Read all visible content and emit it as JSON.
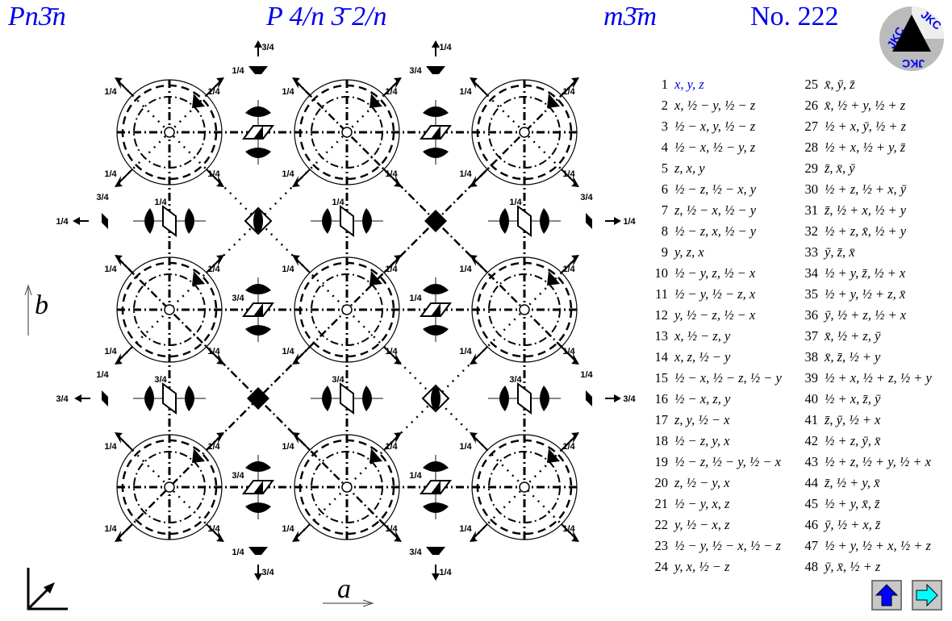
{
  "header": {
    "short_symbol": "Pn3̄n",
    "full_symbol": "P 4/n 3̄ 2/n",
    "point_group": "m3̄m",
    "number": "No. 222"
  },
  "logo": {
    "text": "JKC"
  },
  "axes": {
    "a": "a",
    "b": "b"
  },
  "diagram": {
    "quarter": "1/4",
    "three_quarter": "3/4"
  },
  "positions": [
    {
      "n": "1",
      "expr": "x, y, z",
      "highlight": true
    },
    {
      "n": "2",
      "expr": "x, ½ − y, ½ − z"
    },
    {
      "n": "3",
      "expr": "½ − x, y, ½ − z"
    },
    {
      "n": "4",
      "expr": "½ − x, ½ − y, z"
    },
    {
      "n": "5",
      "expr": "z, x, y"
    },
    {
      "n": "6",
      "expr": "½ − z, ½ − x, y"
    },
    {
      "n": "7",
      "expr": "z, ½ − x, ½ − y"
    },
    {
      "n": "8",
      "expr": "½ − z, x, ½ − y"
    },
    {
      "n": "9",
      "expr": "y, z, x"
    },
    {
      "n": "10",
      "expr": "½ − y, z, ½ − x"
    },
    {
      "n": "11",
      "expr": "½ − y, ½ − z, x"
    },
    {
      "n": "12",
      "expr": "y, ½ − z, ½ − x"
    },
    {
      "n": "13",
      "expr": "x, ½ − z, y"
    },
    {
      "n": "14",
      "expr": "x, z, ½ − y"
    },
    {
      "n": "15",
      "expr": "½ − x, ½ − z, ½ − y"
    },
    {
      "n": "16",
      "expr": "½ − x, z, y"
    },
    {
      "n": "17",
      "expr": "z, y, ½ − x"
    },
    {
      "n": "18",
      "expr": "½ − z, y, x"
    },
    {
      "n": "19",
      "expr": "½ − z, ½ − y, ½ − x"
    },
    {
      "n": "20",
      "expr": "z, ½ − y, x"
    },
    {
      "n": "21",
      "expr": "½ − y, x, z"
    },
    {
      "n": "22",
      "expr": "y, ½ − x, z"
    },
    {
      "n": "23",
      "expr": "½ − y, ½ − x, ½ − z"
    },
    {
      "n": "24",
      "expr": "y, x, ½ − z"
    },
    {
      "n": "25",
      "expr": "x̄, ȳ, z̄"
    },
    {
      "n": "26",
      "expr": "x̄, ½ + y, ½ + z"
    },
    {
      "n": "27",
      "expr": "½ + x, ȳ, ½ + z"
    },
    {
      "n": "28",
      "expr": "½ + x, ½ + y, z̄"
    },
    {
      "n": "29",
      "expr": "z̄, x̄, ȳ"
    },
    {
      "n": "30",
      "expr": "½ + z, ½ + x, ȳ"
    },
    {
      "n": "31",
      "expr": "z̄, ½ + x, ½ + y"
    },
    {
      "n": "32",
      "expr": "½ + z, x̄, ½ + y"
    },
    {
      "n": "33",
      "expr": "ȳ, z̄, x̄"
    },
    {
      "n": "34",
      "expr": "½ + y, z̄, ½ + x"
    },
    {
      "n": "35",
      "expr": "½ + y, ½ + z, x̄"
    },
    {
      "n": "36",
      "expr": "ȳ, ½ + z, ½ + x"
    },
    {
      "n": "37",
      "expr": "x̄, ½ + z, ȳ"
    },
    {
      "n": "38",
      "expr": "x̄, z̄, ½ + y"
    },
    {
      "n": "39",
      "expr": "½ + x, ½ + z, ½ + y"
    },
    {
      "n": "40",
      "expr": "½ + x, z̄, ȳ"
    },
    {
      "n": "41",
      "expr": "z̄, ȳ, ½ + x"
    },
    {
      "n": "42",
      "expr": "½ + z, ȳ, x̄"
    },
    {
      "n": "43",
      "expr": "½ + z, ½ + y, ½ + x"
    },
    {
      "n": "44",
      "expr": "z̄, ½ + y, x̄"
    },
    {
      "n": "45",
      "expr": "½ + y, x̄, z̄"
    },
    {
      "n": "46",
      "expr": "ȳ, ½ + x, z̄"
    },
    {
      "n": "47",
      "expr": "½ + y, ½ + x, ½ + z"
    },
    {
      "n": "48",
      "expr": "ȳ, x̄, ½ + z"
    }
  ],
  "nav": {
    "up_icon": "up-arrow-icon",
    "next_icon": "right-arrow-icon",
    "up_color": "#0000ff",
    "next_color": "#00ffff"
  }
}
